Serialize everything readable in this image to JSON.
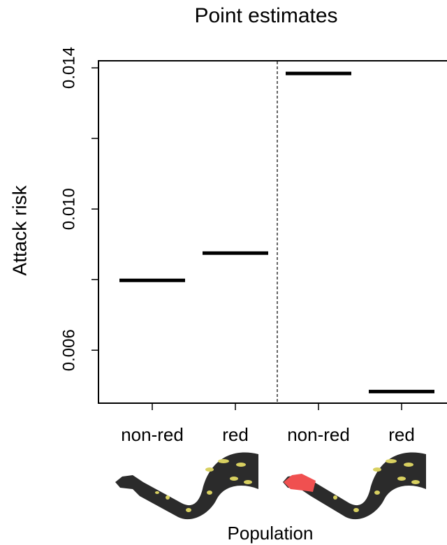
{
  "chart_data": {
    "type": "segment",
    "title": "Point estimates",
    "y_label": "Attack risk",
    "x_label": "Population",
    "categories": [
      "non-red",
      "red",
      "non-red",
      "red"
    ],
    "values": [
      0.00798,
      0.00875,
      0.01384,
      0.00483
    ],
    "color": "#000000",
    "ylim": [
      0.0045,
      0.0142
    ],
    "yticks": [
      0.006,
      {
        "value": 0.01,
        "label": "0.010"
      },
      0.014
    ],
    "yminor_ticks": [
      0.008,
      0.012
    ],
    "grid": false
  }
}
